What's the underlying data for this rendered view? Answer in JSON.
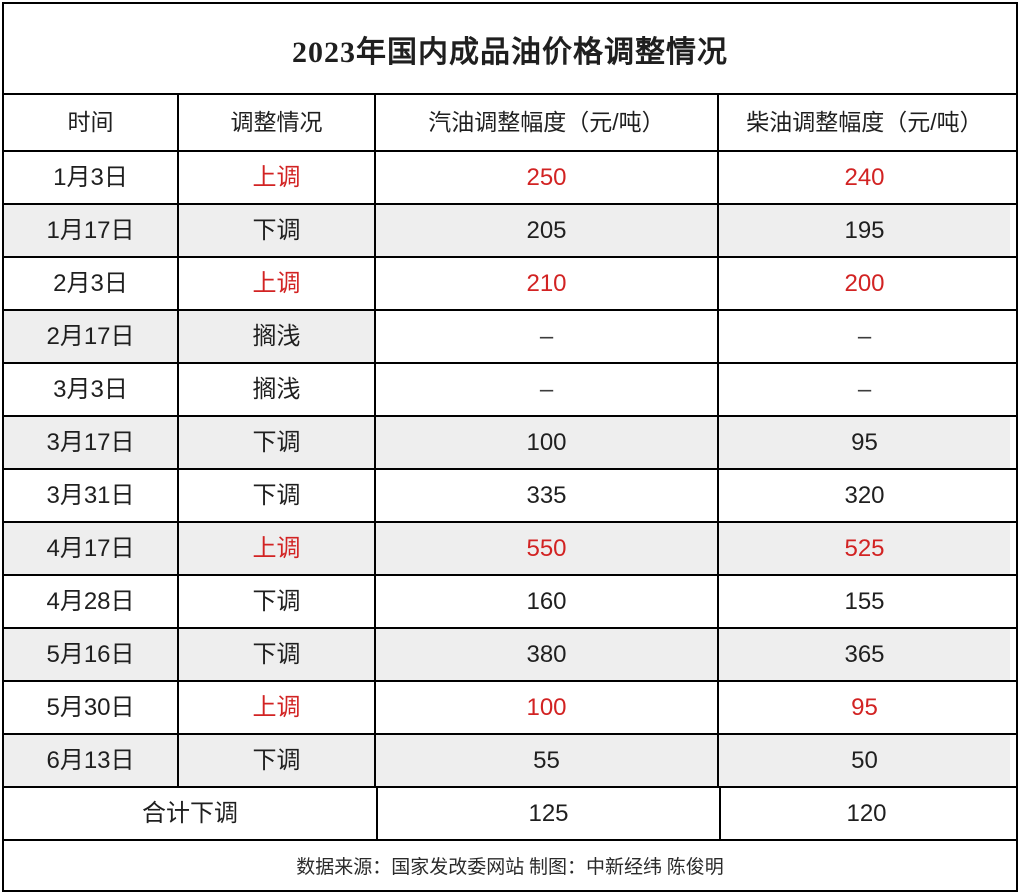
{
  "chart_data": {
    "type": "table",
    "title": "2023年国内成品油价格调整情况",
    "columns": [
      "时间",
      "调整情况",
      "汽油调整幅度（元/吨）",
      "柴油调整幅度（元/吨）"
    ],
    "rows": [
      {
        "date": "1月3日",
        "status": "上调",
        "gasoline": "250",
        "diesel": "240",
        "highlight": true,
        "shade": "none"
      },
      {
        "date": "1月17日",
        "status": "下调",
        "gasoline": "205",
        "diesel": "195",
        "highlight": false,
        "shade": "full"
      },
      {
        "date": "2月3日",
        "status": "上调",
        "gasoline": "210",
        "diesel": "200",
        "highlight": true,
        "shade": "none"
      },
      {
        "date": "2月17日",
        "status": "搁浅",
        "gasoline": "–",
        "diesel": "–",
        "highlight": false,
        "shade": "left"
      },
      {
        "date": "3月3日",
        "status": "搁浅",
        "gasoline": "–",
        "diesel": "–",
        "highlight": false,
        "shade": "none"
      },
      {
        "date": "3月17日",
        "status": "下调",
        "gasoline": "100",
        "diesel": "95",
        "highlight": false,
        "shade": "full"
      },
      {
        "date": "3月31日",
        "status": "下调",
        "gasoline": "335",
        "diesel": "320",
        "highlight": false,
        "shade": "none"
      },
      {
        "date": "4月17日",
        "status": "上调",
        "gasoline": "550",
        "diesel": "525",
        "highlight": true,
        "shade": "full"
      },
      {
        "date": "4月28日",
        "status": "下调",
        "gasoline": "160",
        "diesel": "155",
        "highlight": false,
        "shade": "none"
      },
      {
        "date": "5月16日",
        "status": "下调",
        "gasoline": "380",
        "diesel": "365",
        "highlight": false,
        "shade": "full"
      },
      {
        "date": "5月30日",
        "status": "上调",
        "gasoline": "100",
        "diesel": "95",
        "highlight": true,
        "shade": "none"
      },
      {
        "date": "6月13日",
        "status": "下调",
        "gasoline": "55",
        "diesel": "50",
        "highlight": false,
        "shade": "full"
      }
    ],
    "total_row": {
      "label": "合计下调",
      "gasoline": "125",
      "diesel": "120"
    },
    "source_note": "数据来源：国家发改委网站 制图：中新经纬 陈俊明"
  },
  "colors": {
    "highlight_red": "#d22323",
    "zebra_gray": "#eeeeee",
    "grid_border": "#000000",
    "text": "#1f1f1f"
  }
}
